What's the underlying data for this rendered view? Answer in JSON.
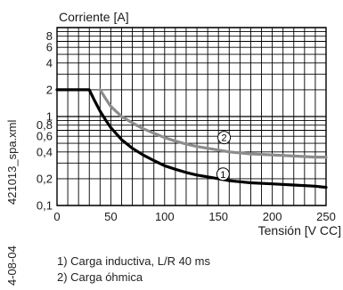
{
  "side_texts": {
    "doc_id": "421013_spa.xml",
    "date": "4-08-04"
  },
  "legend": [
    "1) Carga inductiva, L/R 40 ms",
    "2) Carga óhmica"
  ],
  "chart_data": {
    "type": "line",
    "ylabel": "Corriente [A]",
    "xlabel": "Tensión [V CC]",
    "xlim": [
      0,
      250
    ],
    "ylim": [
      0.1,
      10
    ],
    "y_scale": "log",
    "grid": true,
    "x_ticks": [
      0,
      50,
      100,
      150,
      200,
      250
    ],
    "x_tick_labels": [
      "0",
      "50",
      "100",
      "150",
      "200",
      "250"
    ],
    "y_ticks": [
      0.1,
      0.2,
      0.4,
      0.6,
      0.8,
      1,
      2,
      4,
      6,
      8
    ],
    "y_tick_labels": [
      "0,1",
      "0,2",
      "0,4",
      "0,6",
      "0,8",
      "1",
      "2",
      "4",
      "6",
      "8"
    ],
    "series": [
      {
        "marker": "1",
        "color": "#000000",
        "marker_at": [
          146,
          0.225
        ],
        "x": [
          0,
          30,
          35,
          40,
          45,
          50,
          60,
          70,
          80,
          90,
          100,
          110,
          120,
          130,
          140,
          150,
          160,
          170,
          180,
          200,
          220,
          240,
          250
        ],
        "y": [
          2,
          2,
          1.5,
          1.15,
          0.92,
          0.75,
          0.55,
          0.44,
          0.37,
          0.32,
          0.28,
          0.255,
          0.235,
          0.22,
          0.21,
          0.2,
          0.19,
          0.185,
          0.18,
          0.175,
          0.17,
          0.165,
          0.16
        ]
      },
      {
        "marker": "2",
        "color": "#8c8c8c",
        "marker_at": [
          147,
          0.58
        ],
        "x": [
          40,
          45,
          50,
          60,
          70,
          80,
          90,
          100,
          110,
          120,
          130,
          140,
          150,
          160,
          170,
          180,
          200,
          220,
          240,
          250
        ],
        "y": [
          2,
          1.6,
          1.3,
          1.0,
          0.85,
          0.73,
          0.65,
          0.58,
          0.53,
          0.49,
          0.46,
          0.44,
          0.42,
          0.4,
          0.39,
          0.38,
          0.37,
          0.36,
          0.35,
          0.35
        ]
      }
    ]
  }
}
